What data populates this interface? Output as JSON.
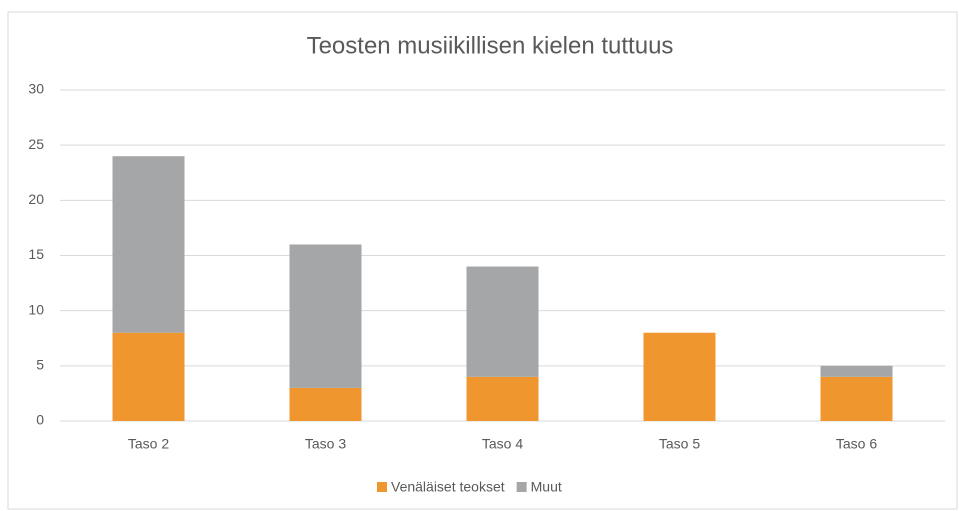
{
  "chart_data": {
    "type": "bar",
    "stacked": true,
    "title": "Teosten musiikillisen kielen tuttuus",
    "categories": [
      "Taso 2",
      "Taso 3",
      "Taso 4",
      "Taso 5",
      "Taso 6"
    ],
    "series": [
      {
        "name": "Venäläiset teokset",
        "color": "#f0962f",
        "values": [
          8,
          3,
          4,
          8,
          4
        ]
      },
      {
        "name": "Muut",
        "color": "#a5a6a8",
        "values": [
          16,
          13,
          10,
          0,
          1
        ]
      }
    ],
    "ylim": [
      0,
      30
    ],
    "yticks": [
      0,
      5,
      10,
      15,
      20,
      25,
      30
    ],
    "grid": true,
    "legend": "bottom"
  }
}
